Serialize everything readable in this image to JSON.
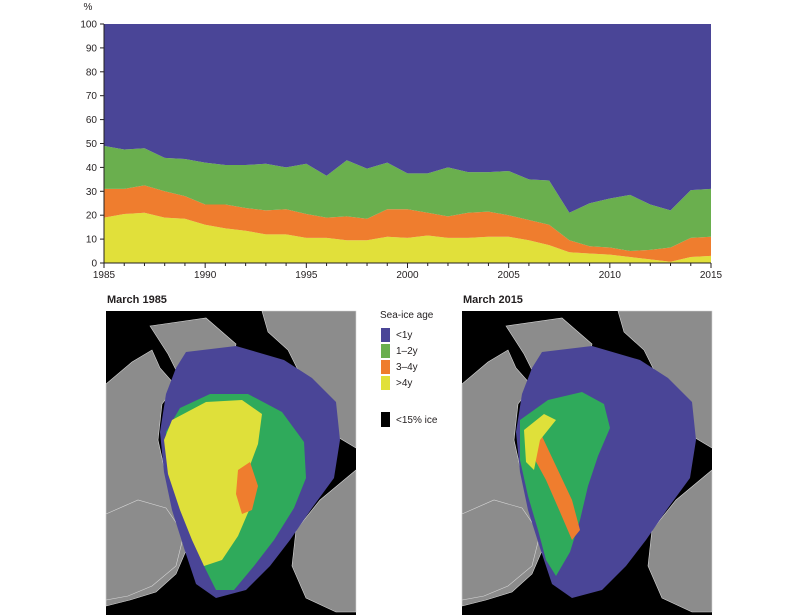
{
  "chart_data": [
    {
      "type": "area",
      "stacked": true,
      "ylabel": "%",
      "xlim": [
        1985,
        2015
      ],
      "ylim": [
        0,
        100
      ],
      "x_ticks": [
        "1985",
        "1990",
        "1995",
        "2000",
        "2005",
        "2010",
        "2015"
      ],
      "y_ticks": [
        "0",
        "10",
        "20",
        "30",
        "40",
        "50",
        "60",
        "70",
        "80",
        "90",
        "100"
      ],
      "x": [
        1985,
        1986,
        1987,
        1988,
        1989,
        1990,
        1991,
        1992,
        1993,
        1994,
        1995,
        1996,
        1997,
        1998,
        1999,
        2000,
        2001,
        2002,
        2003,
        2004,
        2005,
        2006,
        2007,
        2008,
        2009,
        2010,
        2011,
        2012,
        2013,
        2014,
        2015
      ],
      "series": [
        {
          "name": ">4y",
          "color": "#e1e03a",
          "values": [
            19,
            20.5,
            21,
            19,
            18.5,
            16,
            14.5,
            13.5,
            12,
            12,
            10.5,
            10.5,
            9.5,
            9.5,
            11,
            10.5,
            11.5,
            10.5,
            10.5,
            11,
            11,
            9.5,
            7.5,
            4.5,
            4,
            3.5,
            2.5,
            1.5,
            0.5,
            2.5,
            3
          ]
        },
        {
          "name": "3–4y",
          "color": "#ef7d2e",
          "values": [
            12,
            10.5,
            11.5,
            11,
            9.5,
            8.5,
            10,
            9.5,
            10,
            10.5,
            10,
            8.5,
            10,
            9,
            11.5,
            12,
            9.5,
            9,
            10.5,
            10.5,
            9,
            8.5,
            8.5,
            5,
            3,
            3,
            2.5,
            4,
            6,
            8,
            8
          ]
        },
        {
          "name": "1–2y",
          "color": "#6aaf4e",
          "values": [
            18,
            16.5,
            15.5,
            14,
            15.5,
            17.5,
            16.5,
            18,
            19.5,
            17.5,
            21,
            17.5,
            23.5,
            21,
            19.5,
            15,
            16.5,
            20.5,
            17,
            16.5,
            18.5,
            17,
            18.5,
            11.5,
            18,
            20.5,
            23.5,
            19,
            15.5,
            20,
            20
          ]
        },
        {
          "name": "<1y",
          "color": "#4a4597",
          "values": [
            51,
            52.5,
            52,
            56,
            56.5,
            58,
            59,
            59,
            58.5,
            60,
            58.5,
            63.5,
            57,
            60.5,
            58,
            62.5,
            62.5,
            60,
            62,
            62,
            61.5,
            65,
            65.5,
            79,
            75,
            73,
            71.5,
            75.5,
            78,
            69.5,
            69
          ]
        }
      ]
    }
  ],
  "maps": [
    {
      "title": "March 1985"
    },
    {
      "title": "March 2015"
    }
  ],
  "legend": {
    "title": "Sea-ice age",
    "items": [
      {
        "label": "<1y",
        "color": "#4a4597"
      },
      {
        "label": "1–2y",
        "color": "#6aaf4e"
      },
      {
        "label": "3–4y",
        "color": "#ef7d2e"
      },
      {
        "label": ">4y",
        "color": "#e1e03a"
      }
    ],
    "low_ice": {
      "label": "<15% ice",
      "color": "#000000"
    }
  },
  "map_colors": {
    "land": "#8c8c8c",
    "ocean": "#000000",
    "coast": "#d6d6d6"
  }
}
